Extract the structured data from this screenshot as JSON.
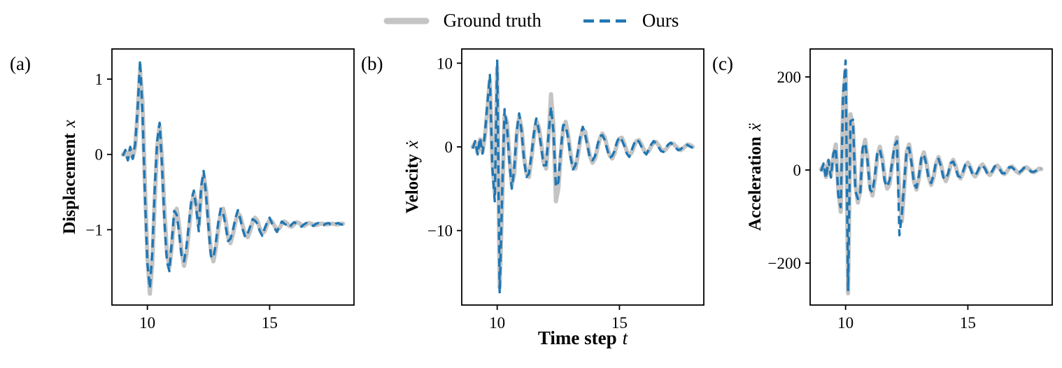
{
  "chart_data": {
    "type": "line",
    "legend_position": "top center",
    "grid": false,
    "xlabel": "Time step t",
    "xlabel_main": "Time step",
    "xlabel_math": "t",
    "xlim": [
      8.55,
      18.45
    ],
    "xticks": [
      10,
      15
    ],
    "x": [
      9,
      9.1,
      9.2,
      9.3,
      9.4,
      9.5,
      9.6,
      9.7,
      9.8,
      9.9,
      10,
      10.1,
      10.2,
      10.3,
      10.4,
      10.5,
      10.6,
      10.7,
      10.8,
      10.9,
      11,
      11.1,
      11.2,
      11.3,
      11.4,
      11.5,
      11.6,
      11.7,
      11.8,
      11.9,
      12,
      12.1,
      12.2,
      12.3,
      12.4,
      12.5,
      12.6,
      12.7,
      12.8,
      12.9,
      13,
      13.1,
      13.2,
      13.3,
      13.4,
      13.5,
      13.6,
      13.7,
      13.8,
      13.9,
      14,
      14.1,
      14.2,
      14.3,
      14.4,
      14.5,
      14.6,
      14.7,
      14.8,
      14.9,
      15,
      15.1,
      15.2,
      15.3,
      15.4,
      15.5,
      15.6,
      15.7,
      15.8,
      15.9,
      16,
      16.1,
      16.2,
      16.3,
      16.4,
      16.5,
      16.6,
      16.7,
      16.8,
      16.9,
      17,
      17.1,
      17.2,
      17.3,
      17.4,
      17.5,
      17.6,
      17.7,
      17.8,
      17.9,
      18
    ],
    "series_styles": [
      {
        "name": "Ground truth",
        "color": "#c4c4c4",
        "width": 6,
        "dash": null
      },
      {
        "name": "Ours",
        "color": "#1f77b4",
        "width": 3.4,
        "dash": [
          12,
          7
        ]
      }
    ],
    "panels": [
      {
        "tag": "(a)",
        "ylabel": "Displacement x",
        "ylabel_main": "Displacement",
        "ylabel_math": "x",
        "ylim": [
          -2.0,
          1.4
        ],
        "yticks": [
          1,
          0,
          -1
        ],
        "series": [
          {
            "name": "Ground truth",
            "values": [
              0,
              0.03,
              -0.05,
              0.07,
              -0.04,
              0.1,
              0.55,
              1.12,
              0.7,
              -0.4,
              -1.35,
              -1.85,
              -1.45,
              -0.6,
              0.1,
              0.38,
              -0.05,
              -0.75,
              -1.3,
              -1.5,
              -1.22,
              -0.85,
              -0.72,
              -0.95,
              -1.28,
              -1.48,
              -1.32,
              -1,
              -0.68,
              -0.52,
              -0.65,
              -0.95,
              -0.5,
              -0.28,
              -0.48,
              -0.9,
              -1.28,
              -1.42,
              -1.25,
              -0.98,
              -0.78,
              -0.72,
              -0.88,
              -1.1,
              -1.18,
              -1.06,
              -0.9,
              -0.78,
              -0.82,
              -0.95,
              -1.06,
              -1.1,
              -1.02,
              -0.9,
              -0.84,
              -0.88,
              -0.98,
              -1.05,
              -1.02,
              -0.93,
              -0.87,
              -0.89,
              -0.95,
              -1,
              -0.98,
              -0.92,
              -0.89,
              -0.91,
              -0.95,
              -0.96,
              -0.93,
              -0.9,
              -0.91,
              -0.94,
              -0.95,
              -0.93,
              -0.91,
              -0.92,
              -0.93,
              -0.94,
              -0.93,
              -0.92,
              -0.92,
              -0.93,
              -0.93,
              -0.92,
              -0.92,
              -0.93,
              -0.93,
              -0.92,
              -0.92
            ]
          },
          {
            "name": "Ours",
            "values": [
              -0.02,
              0.06,
              -0.08,
              0.1,
              -0.06,
              0.14,
              0.6,
              1.25,
              0.55,
              -0.55,
              -1.45,
              -1.78,
              -1.3,
              -0.45,
              0.18,
              0.42,
              -0.15,
              -0.9,
              -1.42,
              -1.55,
              -1.15,
              -0.75,
              -0.8,
              -1.05,
              -1.35,
              -1.42,
              -1.22,
              -0.92,
              -0.6,
              -0.48,
              -0.72,
              -1.02,
              -0.42,
              -0.22,
              -0.55,
              -0.98,
              -1.35,
              -1.38,
              -1.18,
              -0.9,
              -0.72,
              -0.78,
              -0.95,
              -1.15,
              -1.12,
              -1,
              -0.85,
              -0.74,
              -0.86,
              -1,
              -1.1,
              -1.05,
              -0.96,
              -0.86,
              -0.88,
              -0.92,
              -1.02,
              -1.08,
              -0.98,
              -0.9,
              -0.84,
              -0.92,
              -0.98,
              -1.03,
              -0.95,
              -0.89,
              -0.92,
              -0.94,
              -0.97,
              -0.93,
              -0.9,
              -0.92,
              -0.94,
              -0.96,
              -0.93,
              -0.91,
              -0.93,
              -0.94,
              -0.95,
              -0.92,
              -0.91,
              -0.93,
              -0.94,
              -0.92,
              -0.91,
              -0.93,
              -0.94,
              -0.92,
              -0.91,
              -0.93,
              -0.93
            ]
          }
        ]
      },
      {
        "tag": "(b)",
        "ylabel": "Velocity ẋ",
        "ylabel_main": "Velocity",
        "ylabel_math": "ẋ",
        "ylim": [
          -18.9,
          11.7
        ],
        "yticks": [
          10,
          0,
          -10
        ],
        "series": [
          {
            "name": "Ground truth",
            "values": [
              0,
              0.5,
              -0.7,
              0.9,
              -0.6,
              1.3,
              4.5,
              8,
              -1.5,
              -5.5,
              9.5,
              -16.8,
              -7,
              3.8,
              3,
              -1.2,
              -4.6,
              -3.2,
              1.4,
              3.6,
              2.2,
              -1.2,
              -3.2,
              -3.6,
              -1.4,
              1.2,
              3.1,
              2.4,
              0.4,
              -1.8,
              -2.6,
              1,
              6.3,
              2.5,
              -6.5,
              -5,
              -1,
              2.2,
              3,
              1.5,
              -0.8,
              -2.4,
              -2.6,
              -1,
              0.9,
              2.1,
              1.8,
              0.3,
              -1.2,
              -1.9,
              -1.4,
              -0.2,
              1,
              1.6,
              1.1,
              0,
              -1,
              -1.4,
              -0.8,
              0.3,
              1,
              1.1,
              0.4,
              -0.5,
              -1,
              -0.7,
              0.1,
              0.7,
              0.8,
              0.3,
              -0.4,
              -0.7,
              -0.5,
              0.1,
              0.5,
              0.6,
              0.2,
              -0.3,
              -0.5,
              -0.3,
              0.1,
              0.4,
              0.4,
              0.1,
              -0.2,
              -0.4,
              -0.2,
              0.1,
              0.3,
              0.2,
              0
            ]
          },
          {
            "name": "Ours",
            "values": [
              -0.2,
              0.7,
              -0.9,
              1.1,
              -0.8,
              1.6,
              5.2,
              8.6,
              -2.5,
              -6.5,
              10.3,
              -17.5,
              -5.8,
              4.5,
              2.4,
              -1.8,
              -5,
              -2.6,
              1.9,
              4,
              1.8,
              -1.6,
              -3.6,
              -3.2,
              -1,
              1.6,
              3.4,
              2,
              0,
              -2.2,
              -2.2,
              1.5,
              4.8,
              1.8,
              -4.8,
              -4.2,
              -0.5,
              2.6,
              2.6,
              1.1,
              -1.2,
              -2.7,
              -2.2,
              -0.6,
              1.3,
              2.4,
              1.4,
              0,
              -1.5,
              -1.6,
              -1.1,
              0.2,
              1.3,
              1.4,
              0.8,
              -0.3,
              -1.3,
              -1.1,
              -0.5,
              0.6,
              1.2,
              0.8,
              0.1,
              -0.8,
              -1.2,
              -0.4,
              0.4,
              0.9,
              0.6,
              0,
              -0.6,
              -0.9,
              -0.3,
              0.3,
              0.7,
              0.4,
              0,
              -0.5,
              -0.6,
              -0.1,
              0.3,
              0.5,
              0.2,
              -0.1,
              -0.4,
              -0.3,
              0,
              0.3,
              0.2,
              0,
              -0.1
            ]
          }
        ]
      },
      {
        "tag": "(c)",
        "ylabel": "Acceleration ẍ",
        "ylabel_main": "Acceleration",
        "ylabel_math": "ẍ",
        "ylim": [
          -290,
          260
        ],
        "yticks": [
          200,
          0,
          -200
        ],
        "series": [
          {
            "name": "Ground truth",
            "values": [
              2,
              10,
              -15,
              18,
              -12,
              30,
              55,
              -40,
              -90,
              150,
              215,
              -265,
              120,
              95,
              -30,
              -70,
              -45,
              40,
              65,
              25,
              -35,
              -55,
              -20,
              30,
              50,
              28,
              -18,
              -40,
              -30,
              10,
              45,
              70,
              -60,
              -110,
              -35,
              40,
              55,
              20,
              -25,
              -42,
              -18,
              22,
              38,
              18,
              -15,
              -32,
              -15,
              14,
              28,
              12,
              -12,
              -24,
              -10,
              12,
              22,
              9,
              -10,
              -18,
              -7,
              9,
              16,
              7,
              -8,
              -14,
              -6,
              7,
              12,
              5,
              -6,
              -11,
              -4,
              6,
              10,
              4,
              -5,
              -9,
              -3,
              5,
              8,
              3,
              -4,
              -7,
              -2,
              4,
              6,
              2,
              -3,
              -5,
              -2,
              3,
              2
            ]
          },
          {
            "name": "Ours",
            "values": [
              -3,
              14,
              -18,
              22,
              -16,
              35,
              48,
              -55,
              -80,
              165,
              235,
              -258,
              105,
              108,
              -45,
              -62,
              -52,
              48,
              58,
              18,
              -42,
              -48,
              -12,
              38,
              44,
              20,
              -24,
              -36,
              -22,
              16,
              52,
              62,
              -140,
              -95,
              -25,
              46,
              48,
              14,
              -30,
              -38,
              -12,
              26,
              34,
              12,
              -20,
              -28,
              -10,
              18,
              24,
              8,
              -16,
              -20,
              -6,
              15,
              18,
              5,
              -13,
              -15,
              -4,
              12,
              13,
              4,
              -10,
              -12,
              -3,
              9,
              10,
              3,
              -8,
              -9,
              -2,
              8,
              8,
              2,
              -7,
              -7,
              -1,
              6,
              6,
              1,
              -5,
              -5,
              -1,
              5,
              4,
              1,
              -4,
              -4,
              -1,
              4,
              3
            ]
          }
        ]
      }
    ]
  }
}
